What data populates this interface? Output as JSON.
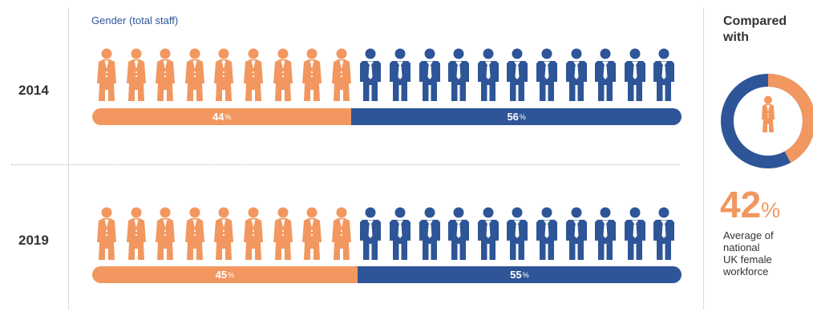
{
  "subtitle": "Gender (total staff)",
  "colors": {
    "female": "#f2975f",
    "male": "#2e5597"
  },
  "icon_names": {
    "female": "female-person-icon",
    "male": "male-person-icon"
  },
  "chart_data": {
    "type": "bar",
    "subtitle": "Gender (total staff)",
    "categories": [
      "2014",
      "2019"
    ],
    "series": [
      {
        "values": [
          44,
          45
        ]
      },
      {
        "values": [
          56,
          55
        ]
      }
    ],
    "icons_per_row": {
      "female": [
        9,
        9
      ],
      "male": [
        11,
        11
      ]
    },
    "rows": [
      {
        "year": "2014",
        "female": {
          "num": "44",
          "unit": "%"
        },
        "male": {
          "num": "56",
          "unit": "%"
        }
      },
      {
        "year": "2019",
        "female": {
          "num": "45",
          "unit": "%"
        },
        "male": {
          "num": "55",
          "unit": "%"
        }
      }
    ]
  },
  "comparison": {
    "title_line1": "Compared",
    "title_line2": "with",
    "value": 42,
    "value_text": "42",
    "unit": "%",
    "desc_lines": [
      "Average of",
      "national",
      "UK female",
      "workforce"
    ]
  }
}
